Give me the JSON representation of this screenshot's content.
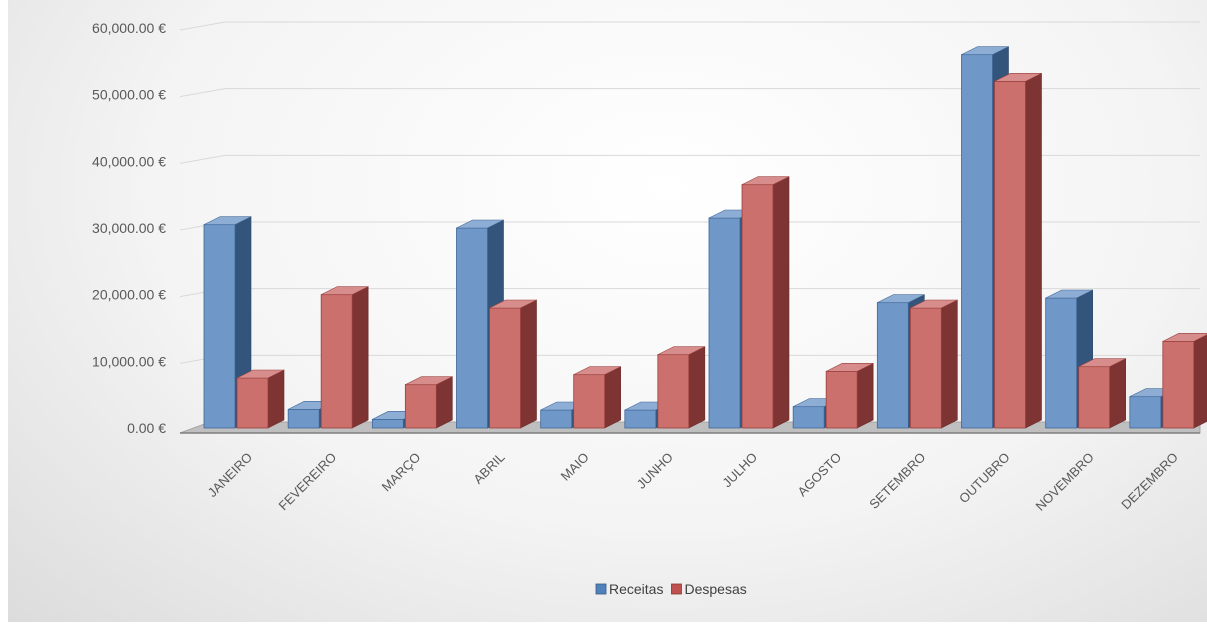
{
  "chart_data": {
    "type": "bar",
    "categories": [
      "JANEIRO",
      "FEVEREIRO",
      "MARÇO",
      "ABRIL",
      "MAIO",
      "JUNHO",
      "JULHO",
      "AGOSTO",
      "SETEMBRO",
      "OUTUBRO",
      "NOVEMBRO",
      "DEZEMBRO"
    ],
    "series": [
      {
        "name": "Receitas",
        "color": "#4F81BD",
        "values": [
          30500,
          2800,
          1300,
          30000,
          2700,
          2700,
          31500,
          3200,
          18800,
          56000,
          19500,
          4700
        ]
      },
      {
        "name": "Despesas",
        "color": "#C0504D",
        "values": [
          7500,
          20000,
          6500,
          18000,
          8000,
          11000,
          36500,
          8500,
          18000,
          52000,
          9200,
          13000
        ]
      }
    ],
    "y_ticks": [
      "0.00 €",
      "10,000.00 €",
      "20,000.00 €",
      "30,000.00 €",
      "40,000.00 €",
      "50,000.00 €",
      "60,000.00 €"
    ],
    "ylim": [
      0,
      60000
    ],
    "grid": true,
    "legend_position": "bottom",
    "style": "3d-clustered-column"
  }
}
